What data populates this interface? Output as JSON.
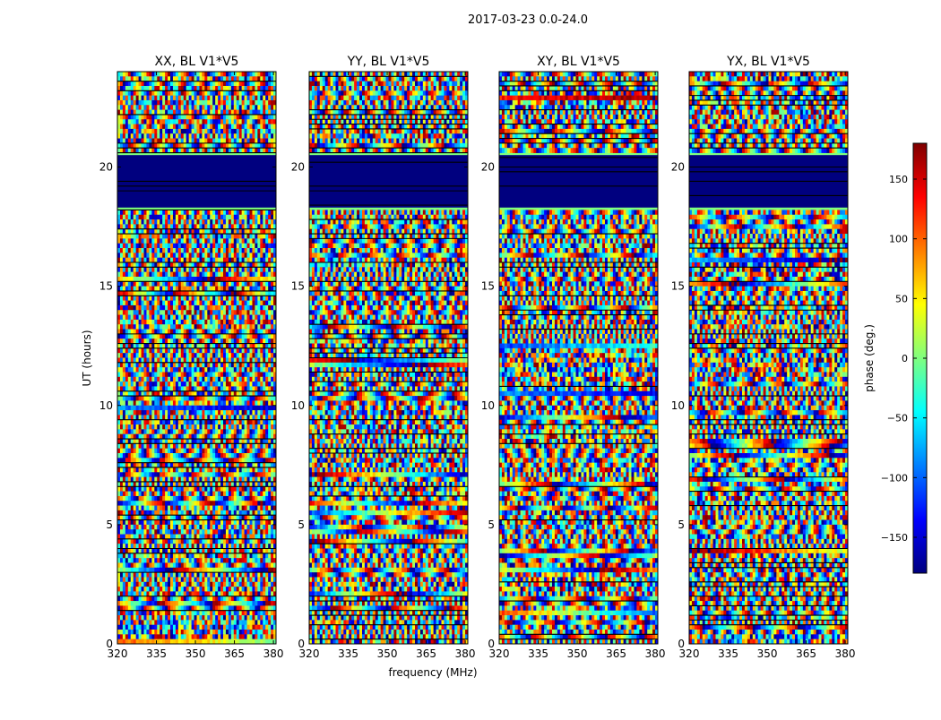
{
  "figure": {
    "suptitle": "2017-03-23 0.0-24.0",
    "xlabel": "frequency (MHz)",
    "ylabel": "UT (hours)"
  },
  "colorbar": {
    "label": "phase (deg.)",
    "range": [
      -180,
      180
    ],
    "ticks": [
      150,
      100,
      50,
      0,
      -50,
      -100,
      -150
    ],
    "tick_labels": [
      "150",
      "100",
      "50",
      "0",
      "−50",
      "−100",
      "−150"
    ],
    "colormap": [
      "#00007f",
      "#0000ff",
      "#007fff",
      "#00ffff",
      "#7fff7f",
      "#ffff00",
      "#ff7f00",
      "#ff0000",
      "#7f0000"
    ]
  },
  "chart_data": {
    "type": "heatmap",
    "x_range": [
      320,
      381
    ],
    "y_range": [
      0,
      24
    ],
    "x_ticks": [
      320,
      335,
      350,
      365,
      380
    ],
    "x_tick_labels": [
      "320",
      "335",
      "350",
      "365",
      "380"
    ],
    "y_ticks": [
      0,
      5,
      10,
      15,
      20
    ],
    "y_tick_labels": [
      "0",
      "5",
      "10",
      "15",
      "20"
    ],
    "value": "phase",
    "value_unit": "deg.",
    "value_range": [
      -180,
      180
    ],
    "flagged_ranges": [
      [
        18.3,
        20.5
      ]
    ],
    "panels": [
      {
        "title": "XX, BL V1*V5"
      },
      {
        "title": "YY, BL V1*V5"
      },
      {
        "title": "XY, BL V1*V5"
      },
      {
        "title": "YX, BL V1*V5"
      }
    ]
  }
}
